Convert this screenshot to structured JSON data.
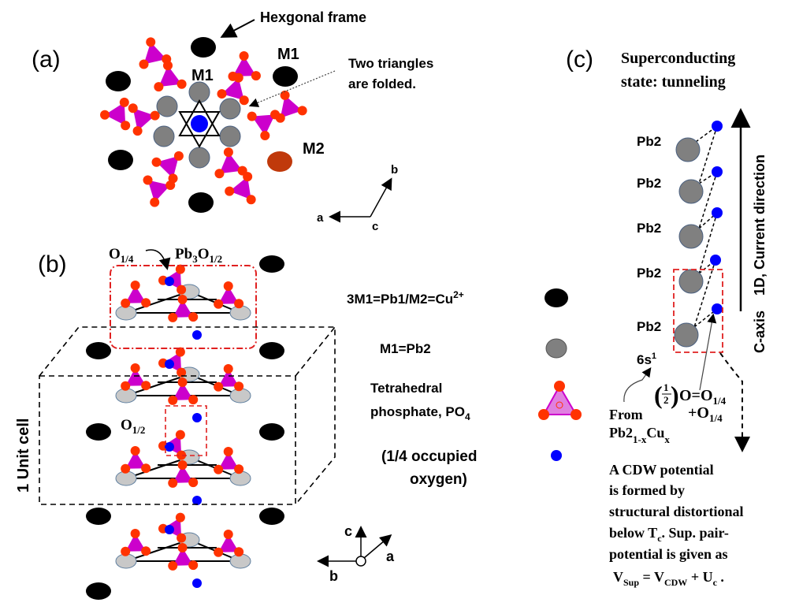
{
  "panel_a": {
    "label": "(a)",
    "hex_frame": "Hexgonal frame",
    "m1_inner": "M1",
    "m1_outer": "M1",
    "m2": "M2",
    "folded_line1": "Two triangles",
    "folded_line2": "are folded.",
    "axes": {
      "a": "a",
      "b": "b",
      "c": "c"
    }
  },
  "panel_b": {
    "label": "(b)",
    "o14": {
      "base": "O",
      "sub": "1/4"
    },
    "pb3o12": {
      "base1": "Pb",
      "sub1": "3",
      "base2": "O",
      "sub2": "1/2"
    },
    "o12": {
      "base": "O",
      "sub": "1/2"
    },
    "unit_cell": "1 Unit cell",
    "legend": {
      "black": {
        "text": "3M1=Pb1/M2=Cu",
        "sup": "2+"
      },
      "grey": "M1=Pb2",
      "tetra_line1": "Tetrahedral",
      "tetra_line2": {
        "text": "phosphate, PO",
        "sub": "4"
      },
      "oxy_line1": "(1/4 occupied",
      "oxy_line2": "oxygen)"
    },
    "axes": {
      "a": "a",
      "b": "b",
      "c": "c"
    }
  },
  "panel_c": {
    "label": "(c)",
    "title_line1": "Superconducting",
    "title_line2": "state: tunneling",
    "pb_labels": [
      "Pb2",
      "Pb2",
      "Pb2",
      "Pb2",
      "Pb2"
    ],
    "orbital": {
      "text": "6s",
      "sup": "1"
    },
    "axis_label": "1D, Current direction",
    "c_axis": "C-axis",
    "formula": {
      "frac_num": "1",
      "frac_den": "2",
      "rest": "O=O",
      "sub": "1/4"
    },
    "formula2": {
      "text": "+O",
      "sub": "1/4"
    },
    "from_line1": "From",
    "from_line2": {
      "base": "Pb2",
      "sub": "1-x",
      "base2": "Cu",
      "sub2": "x"
    },
    "paragraph": {
      "l1": "A CDW potential",
      "l2": "is formed by",
      "l3": "structural distortional",
      "l4a": " below T",
      "l4sub": "c",
      "l4b": ". Sup. pair-",
      "l5": "potential is given as",
      "l6a": "V",
      "l6sub1": "Sup",
      "l6b": " = V",
      "l6sub2": "CDW",
      "l6c": " + U",
      "l6sub3": "c",
      "l6d": " ."
    }
  },
  "colors": {
    "black_atom": "#000000",
    "grey_atom": "#808080",
    "m2_atom": "#c0390b",
    "oxygen_red": "#ff3300",
    "blue_oxygen": "#0000ff",
    "tetra": "#cc00cc",
    "dashed_red": "#e02020"
  }
}
